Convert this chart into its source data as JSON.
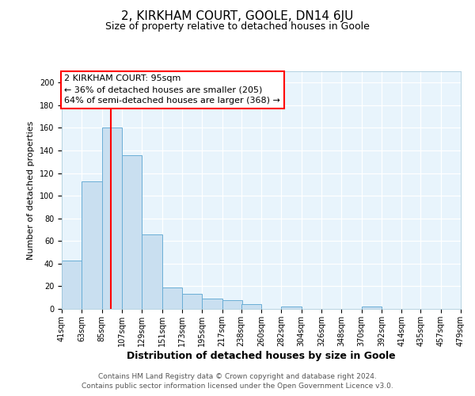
{
  "title": "2, KIRKHAM COURT, GOOLE, DN14 6JU",
  "subtitle": "Size of property relative to detached houses in Goole",
  "xlabel": "Distribution of detached houses by size in Goole",
  "ylabel": "Number of detached properties",
  "footnote1": "Contains HM Land Registry data © Crown copyright and database right 2024.",
  "footnote2": "Contains public sector information licensed under the Open Government Licence v3.0.",
  "bins": [
    41,
    63,
    85,
    107,
    129,
    151,
    173,
    195,
    217,
    238,
    260,
    282,
    304,
    326,
    348,
    370,
    392,
    414,
    435,
    457,
    479
  ],
  "counts": [
    43,
    113,
    160,
    136,
    66,
    19,
    13,
    9,
    8,
    4,
    0,
    2,
    0,
    0,
    0,
    2,
    0,
    0,
    0,
    0
  ],
  "bar_color": "#c9dff0",
  "bar_edge_color": "#6aaed6",
  "red_line_x": 95,
  "annotation_title": "2 KIRKHAM COURT: 95sqm",
  "annotation_line1": "← 36% of detached houses are smaller (205)",
  "annotation_line2": "64% of semi-detached houses are larger (368) →",
  "ylim": [
    0,
    210
  ],
  "yticks": [
    0,
    20,
    40,
    60,
    80,
    100,
    120,
    140,
    160,
    180,
    200
  ],
  "tick_labels": [
    "41sqm",
    "63sqm",
    "85sqm",
    "107sqm",
    "129sqm",
    "151sqm",
    "173sqm",
    "195sqm",
    "217sqm",
    "238sqm",
    "260sqm",
    "282sqm",
    "304sqm",
    "326sqm",
    "348sqm",
    "370sqm",
    "392sqm",
    "414sqm",
    "435sqm",
    "457sqm",
    "479sqm"
  ],
  "background_color": "#e8f4fc",
  "grid_color": "#ffffff",
  "title_fontsize": 11,
  "subtitle_fontsize": 9,
  "xlabel_fontsize": 9,
  "ylabel_fontsize": 8,
  "tick_fontsize": 7,
  "annotation_fontsize": 8,
  "footnote_fontsize": 6.5
}
